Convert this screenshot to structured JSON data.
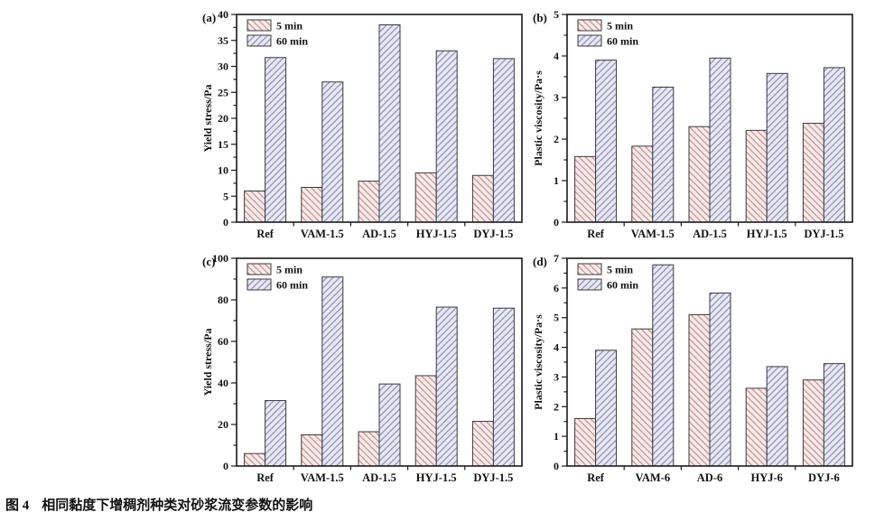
{
  "figure": {
    "caption_label": "图 4",
    "caption_text": "相同黏度下增稠剂种类对砂浆流变参数的影响"
  },
  "legend": {
    "series1_label": "5 min",
    "series2_label": "60 min"
  },
  "style": {
    "series1_fill": "#f8edec",
    "series1_hatch": "#c9918e",
    "series2_fill": "#e9eaf4",
    "series2_hatch": "#8f91bd",
    "bar_edge": "#3a3a3a",
    "axis_color": "#1a1a1a",
    "text_color": "#111111",
    "background": "#ffffff"
  },
  "chart_data": [
    {
      "type": "bar",
      "panel": "a",
      "title": "",
      "xlabel": "",
      "ylabel": "Yield stress/Pa",
      "ylim": [
        0,
        40
      ],
      "ytick_step": 5,
      "yminor_step": 2.5,
      "grid": false,
      "legend_position": "top-left",
      "categories": [
        "Ref",
        "VAM-1.5",
        "AD-1.5",
        "HYJ-1.5",
        "DYJ-1.5"
      ],
      "series": [
        {
          "name": "5 min",
          "values": [
            6.0,
            6.7,
            7.9,
            9.5,
            9.0
          ]
        },
        {
          "name": "60 min",
          "values": [
            31.7,
            27.0,
            38.0,
            33.0,
            31.5
          ]
        }
      ]
    },
    {
      "type": "bar",
      "panel": "b",
      "title": "",
      "xlabel": "",
      "ylabel": "Plastic viscosity/Pa·s",
      "ylim": [
        0,
        5
      ],
      "ytick_step": 1,
      "yminor_step": 0.5,
      "grid": false,
      "legend_position": "top-left",
      "categories": [
        "Ref",
        "VAM-1.5",
        "AD-1.5",
        "HYJ-1.5",
        "DYJ-1.5"
      ],
      "series": [
        {
          "name": "5 min",
          "values": [
            1.58,
            1.83,
            2.3,
            2.21,
            2.38
          ]
        },
        {
          "name": "60 min",
          "values": [
            3.9,
            3.25,
            3.95,
            3.58,
            3.72
          ]
        }
      ]
    },
    {
      "type": "bar",
      "panel": "c",
      "title": "",
      "xlabel": "",
      "ylabel": "Yield stress/Pa",
      "ylim": [
        0,
        100
      ],
      "ytick_step": 20,
      "yminor_step": 10,
      "grid": false,
      "legend_position": "top-left",
      "categories": [
        "Ref",
        "VAM-1.5",
        "AD-1.5",
        "HYJ-1.5",
        "DYJ-1.5"
      ],
      "series": [
        {
          "name": "5 min",
          "values": [
            6.0,
            15.0,
            16.5,
            43.5,
            21.5
          ]
        },
        {
          "name": "60 min",
          "values": [
            31.5,
            91.0,
            39.5,
            76.5,
            76.0
          ]
        }
      ]
    },
    {
      "type": "bar",
      "panel": "d",
      "title": "",
      "xlabel": "",
      "ylabel": "Plastic viscosity/Pa·s",
      "ylim": [
        0,
        7
      ],
      "ytick_step": 1,
      "yminor_step": 0.5,
      "grid": false,
      "legend_position": "top-left",
      "categories": [
        "Ref",
        "VAM-6",
        "AD-6",
        "HYJ-6",
        "DYJ-6"
      ],
      "series": [
        {
          "name": "5 min",
          "values": [
            1.6,
            4.62,
            5.1,
            2.62,
            2.9
          ]
        },
        {
          "name": "60 min",
          "values": [
            3.9,
            6.78,
            5.83,
            3.35,
            3.45
          ]
        }
      ]
    }
  ]
}
